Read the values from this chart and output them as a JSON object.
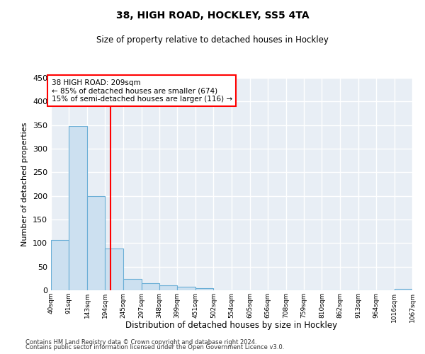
{
  "title": "38, HIGH ROAD, HOCKLEY, SS5 4TA",
  "subtitle": "Size of property relative to detached houses in Hockley",
  "xlabel": "Distribution of detached houses by size in Hockley",
  "ylabel": "Number of detached properties",
  "bar_color": "#cce0f0",
  "bar_edge_color": "#6aaed6",
  "background_color": "#e8eef5",
  "grid_color": "white",
  "bin_edges": [
    40,
    91,
    143,
    194,
    245,
    297,
    348,
    399,
    451,
    502,
    554,
    605,
    656,
    708,
    759,
    810,
    862,
    913,
    964,
    1016,
    1067
  ],
  "bar_heights": [
    107,
    348,
    200,
    88,
    24,
    15,
    10,
    7,
    5,
    0,
    0,
    0,
    0,
    0,
    0,
    0,
    0,
    0,
    0,
    3
  ],
  "tick_labels": [
    "40sqm",
    "91sqm",
    "143sqm",
    "194sqm",
    "245sqm",
    "297sqm",
    "348sqm",
    "399sqm",
    "451sqm",
    "502sqm",
    "554sqm",
    "605sqm",
    "656sqm",
    "708sqm",
    "759sqm",
    "810sqm",
    "862sqm",
    "913sqm",
    "964sqm",
    "1016sqm",
    "1067sqm"
  ],
  "ylim": [
    0,
    450
  ],
  "yticks": [
    0,
    50,
    100,
    150,
    200,
    250,
    300,
    350,
    400,
    450
  ],
  "red_line_x": 209,
  "annotation_line1": "38 HIGH ROAD: 209sqm",
  "annotation_line2": "← 85% of detached houses are smaller (674)",
  "annotation_line3": "15% of semi-detached houses are larger (116) →",
  "footer1": "Contains HM Land Registry data © Crown copyright and database right 2024.",
  "footer2": "Contains public sector information licensed under the Open Government Licence v3.0."
}
